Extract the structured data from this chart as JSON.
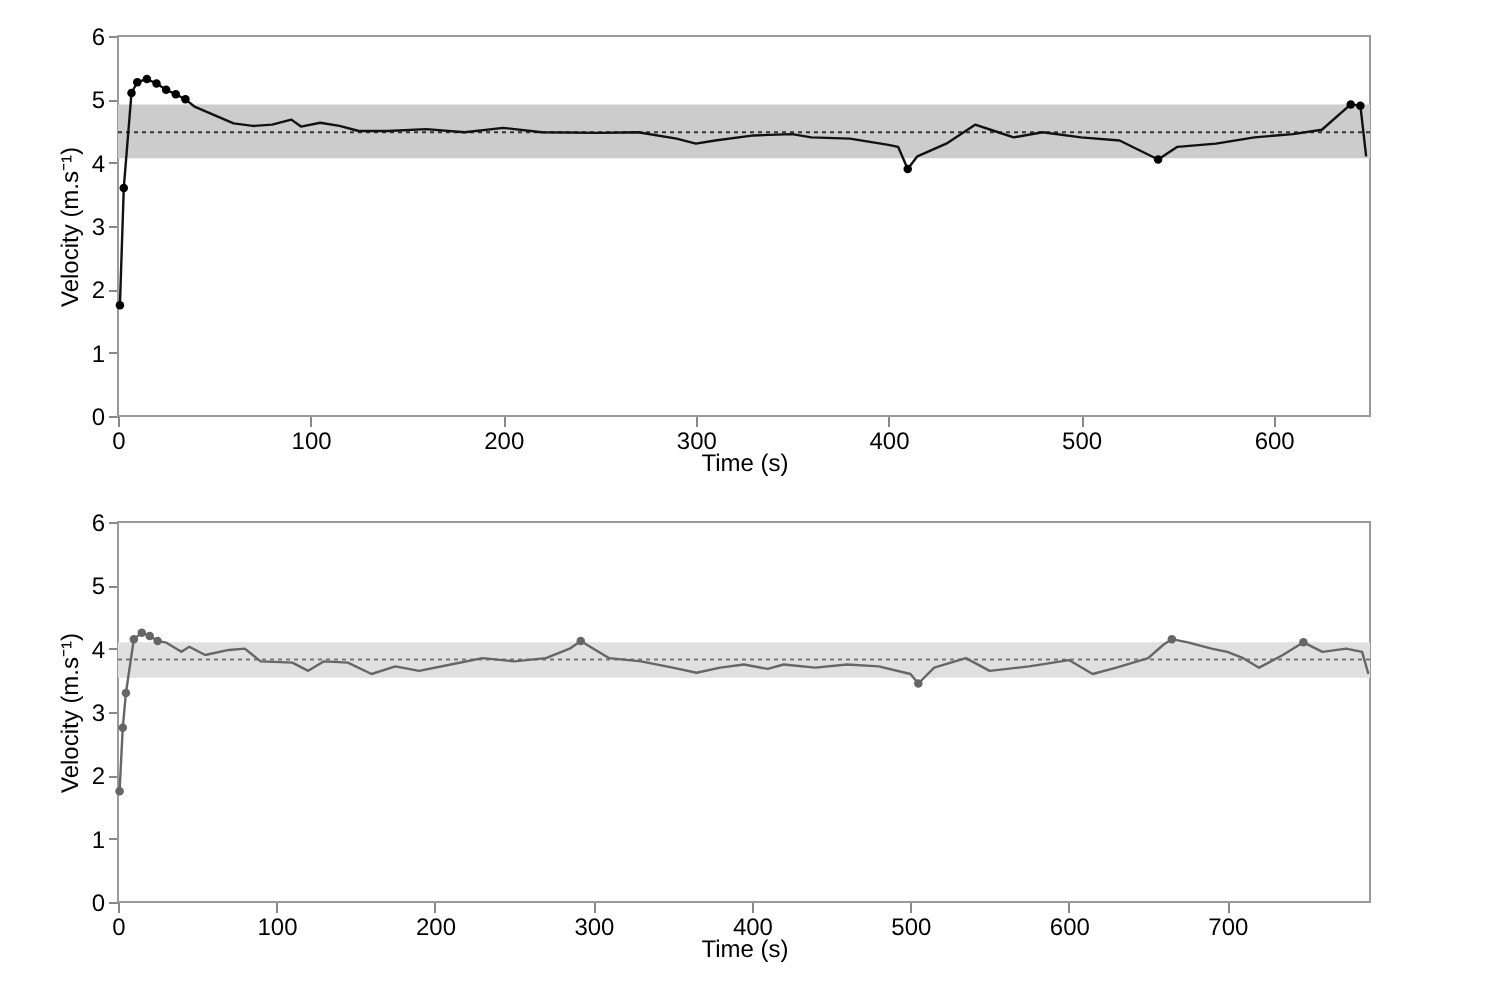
{
  "chart_data": [
    {
      "type": "line",
      "xlabel": "Time (s)",
      "ylabel": "Velocity (m.s⁻¹)",
      "xlim": [
        0,
        650
      ],
      "xticks": [
        0,
        100,
        200,
        300,
        400,
        500,
        600
      ],
      "ylim": [
        0,
        6
      ],
      "yticks": [
        0,
        1,
        2,
        3,
        4,
        5,
        6
      ],
      "grid": false,
      "bands": [
        {
          "axis": "y",
          "from": 4.07,
          "to": 4.92,
          "color": "#cccccc"
        }
      ],
      "ref_lines": [
        {
          "axis": "y",
          "value": 4.48,
          "line_style": "dotted",
          "color": "#333333"
        }
      ],
      "series": [
        {
          "color": "#111111",
          "x": [
            1,
            3,
            7,
            10,
            15,
            20,
            25,
            30,
            35,
            40,
            50,
            60,
            70,
            80,
            90,
            95,
            105,
            115,
            125,
            140,
            160,
            180,
            200,
            220,
            250,
            270,
            290,
            300,
            310,
            330,
            350,
            360,
            380,
            400,
            405,
            410,
            415,
            430,
            445,
            455,
            465,
            480,
            500,
            520,
            530,
            540,
            550,
            570,
            590,
            610,
            625,
            640,
            645,
            648
          ],
          "values": [
            1.75,
            3.6,
            5.1,
            5.27,
            5.32,
            5.25,
            5.15,
            5.08,
            5.0,
            4.88,
            4.75,
            4.62,
            4.58,
            4.6,
            4.68,
            4.57,
            4.63,
            4.58,
            4.5,
            4.5,
            4.53,
            4.48,
            4.55,
            4.48,
            4.47,
            4.48,
            4.38,
            4.3,
            4.35,
            4.43,
            4.45,
            4.4,
            4.38,
            4.28,
            4.25,
            3.9,
            4.1,
            4.3,
            4.6,
            4.5,
            4.4,
            4.48,
            4.4,
            4.35,
            4.2,
            4.05,
            4.25,
            4.3,
            4.4,
            4.45,
            4.52,
            4.92,
            4.9,
            4.1
          ]
        },
        {
          "type": "scatter",
          "marker": "circle",
          "color": "#000000",
          "x": [
            1,
            3,
            7,
            10,
            15,
            20,
            25,
            30,
            35,
            410,
            540,
            640,
            645
          ],
          "values": [
            1.75,
            3.6,
            5.1,
            5.27,
            5.32,
            5.25,
            5.15,
            5.08,
            5.0,
            3.9,
            4.05,
            4.92,
            4.9
          ]
        }
      ]
    },
    {
      "type": "line",
      "xlabel": "Time (s)",
      "ylabel": "Velocity (m.s⁻¹)",
      "xlim": [
        0,
        790
      ],
      "xticks": [
        0,
        100,
        200,
        300,
        400,
        500,
        600,
        700
      ],
      "ylim": [
        0,
        6
      ],
      "yticks": [
        0,
        1,
        2,
        3,
        4,
        5,
        6
      ],
      "grid": false,
      "bands": [
        {
          "axis": "y",
          "from": 3.54,
          "to": 4.1,
          "color": "#e0e0e0"
        }
      ],
      "ref_lines": [
        {
          "axis": "y",
          "value": 3.83,
          "line_style": "dotted",
          "color": "#777777"
        }
      ],
      "series": [
        {
          "color": "#666666",
          "x": [
            1,
            3,
            5,
            10,
            15,
            20,
            25,
            30,
            40,
            45,
            55,
            70,
            80,
            90,
            110,
            120,
            130,
            145,
            160,
            175,
            190,
            210,
            230,
            250,
            270,
            285,
            292,
            300,
            310,
            330,
            350,
            365,
            380,
            395,
            410,
            420,
            440,
            460,
            480,
            500,
            505,
            515,
            535,
            550,
            575,
            600,
            615,
            630,
            650,
            660,
            665,
            675,
            690,
            700,
            710,
            720,
            735,
            748,
            760,
            775,
            785,
            789
          ],
          "values": [
            1.75,
            2.75,
            3.3,
            4.15,
            4.25,
            4.2,
            4.12,
            4.1,
            3.95,
            4.03,
            3.9,
            3.98,
            4.0,
            3.8,
            3.78,
            3.65,
            3.8,
            3.78,
            3.6,
            3.72,
            3.65,
            3.75,
            3.85,
            3.8,
            3.85,
            4.0,
            4.12,
            4.0,
            3.85,
            3.8,
            3.7,
            3.62,
            3.7,
            3.75,
            3.68,
            3.75,
            3.7,
            3.75,
            3.72,
            3.6,
            3.45,
            3.7,
            3.85,
            3.65,
            3.72,
            3.82,
            3.6,
            3.7,
            3.85,
            4.07,
            4.15,
            4.1,
            4.0,
            3.95,
            3.85,
            3.7,
            3.9,
            4.1,
            3.95,
            4.0,
            3.95,
            3.6
          ]
        },
        {
          "type": "scatter",
          "marker": "circle",
          "color": "#666666",
          "x": [
            1,
            3,
            5,
            10,
            15,
            20,
            25,
            292,
            505,
            665,
            748
          ],
          "values": [
            1.75,
            2.75,
            3.3,
            4.15,
            4.25,
            4.2,
            4.12,
            4.12,
            3.45,
            4.15,
            4.1
          ]
        }
      ]
    }
  ]
}
